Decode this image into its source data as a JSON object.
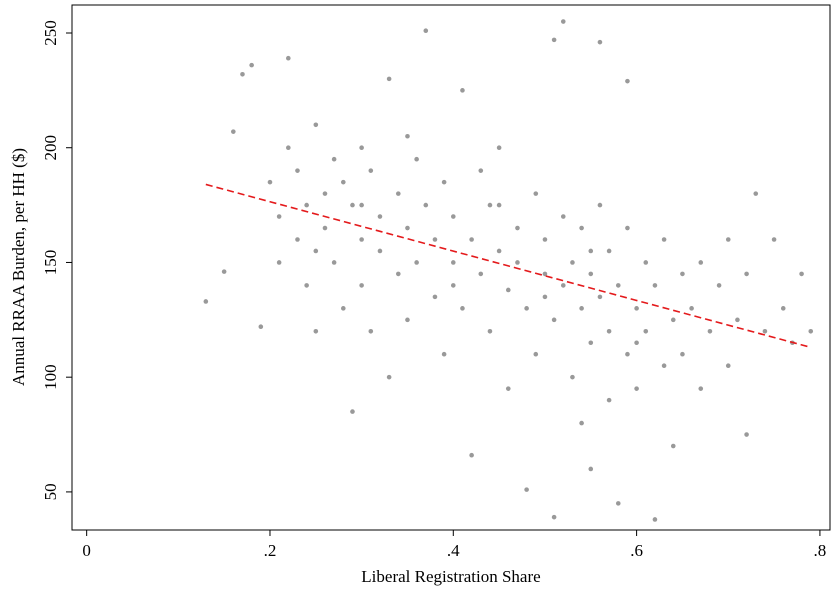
{
  "chart_data": {
    "type": "scatter",
    "x_label": "Liberal Registration Share",
    "y_label": "Annual RRAA Burden, per HH ($)",
    "xlim": [
      -0.016,
      0.811
    ],
    "ylim": [
      33.4,
      262.2
    ],
    "xticks": [
      {
        "value": 0,
        "label": "0"
      },
      {
        "value": 0.2,
        "label": ".2"
      },
      {
        "value": 0.4,
        "label": ".4"
      },
      {
        "value": 0.6,
        "label": ".6"
      },
      {
        "value": 0.8,
        "label": ".8"
      }
    ],
    "yticks": [
      50,
      100,
      150,
      200,
      250
    ],
    "grid": false,
    "points": {
      "color": "#555555",
      "x": [
        0.13,
        0.15,
        0.16,
        0.17,
        0.18,
        0.19,
        0.2,
        0.21,
        0.21,
        0.22,
        0.22,
        0.23,
        0.23,
        0.24,
        0.24,
        0.25,
        0.25,
        0.26,
        0.26,
        0.27,
        0.27,
        0.28,
        0.28,
        0.29,
        0.29,
        0.3,
        0.3,
        0.3,
        0.31,
        0.31,
        0.32,
        0.32,
        0.33,
        0.33,
        0.34,
        0.34,
        0.35,
        0.35,
        0.36,
        0.36,
        0.37,
        0.37,
        0.38,
        0.38,
        0.39,
        0.39,
        0.4,
        0.4,
        0.41,
        0.41,
        0.42,
        0.42,
        0.43,
        0.43,
        0.44,
        0.44,
        0.45,
        0.45,
        0.46,
        0.46,
        0.47,
        0.47,
        0.48,
        0.48,
        0.49,
        0.49,
        0.5,
        0.5,
        0.51,
        0.51,
        0.51,
        0.52,
        0.52,
        0.52,
        0.53,
        0.53,
        0.54,
        0.54,
        0.54,
        0.55,
        0.55,
        0.55,
        0.56,
        0.56,
        0.56,
        0.57,
        0.57,
        0.57,
        0.58,
        0.58,
        0.59,
        0.59,
        0.59,
        0.6,
        0.6,
        0.61,
        0.61,
        0.62,
        0.62,
        0.63,
        0.63,
        0.64,
        0.64,
        0.65,
        0.65,
        0.66,
        0.67,
        0.67,
        0.68,
        0.69,
        0.7,
        0.7,
        0.71,
        0.72,
        0.72,
        0.73,
        0.74,
        0.75,
        0.76,
        0.77,
        0.78,
        0.79,
        0.35,
        0.45,
        0.55,
        0.5,
        0.4,
        0.3,
        0.6,
        0.25
      ],
      "y": [
        133,
        146,
        207,
        232,
        236,
        122,
        185,
        170,
        150,
        239,
        200,
        190,
        160,
        175,
        140,
        120,
        210,
        180,
        165,
        195,
        150,
        130,
        185,
        175,
        85,
        200,
        160,
        140,
        190,
        120,
        170,
        155,
        230,
        100,
        180,
        145,
        165,
        125,
        195,
        150,
        251,
        175,
        135,
        160,
        110,
        185,
        150,
        170,
        225,
        130,
        160,
        66,
        145,
        190,
        175,
        120,
        155,
        200,
        138,
        95,
        165,
        150,
        51,
        130,
        180,
        110,
        145,
        160,
        247,
        125,
        39,
        255,
        140,
        170,
        100,
        150,
        130,
        80,
        165,
        115,
        145,
        60,
        246,
        135,
        175,
        120,
        90,
        155,
        140,
        45,
        110,
        165,
        229,
        130,
        95,
        150,
        120,
        38,
        140,
        105,
        160,
        125,
        70,
        145,
        110,
        130,
        95,
        150,
        120,
        140,
        105,
        160,
        125,
        75,
        145,
        180,
        120,
        160,
        130,
        115,
        145,
        120,
        205,
        175,
        155,
        135,
        140,
        175,
        115,
        155
      ]
    },
    "fit_line": {
      "color": "#e41a1c",
      "dashed": true,
      "x": [
        0.13,
        0.79
      ],
      "y": [
        184,
        113
      ]
    }
  }
}
